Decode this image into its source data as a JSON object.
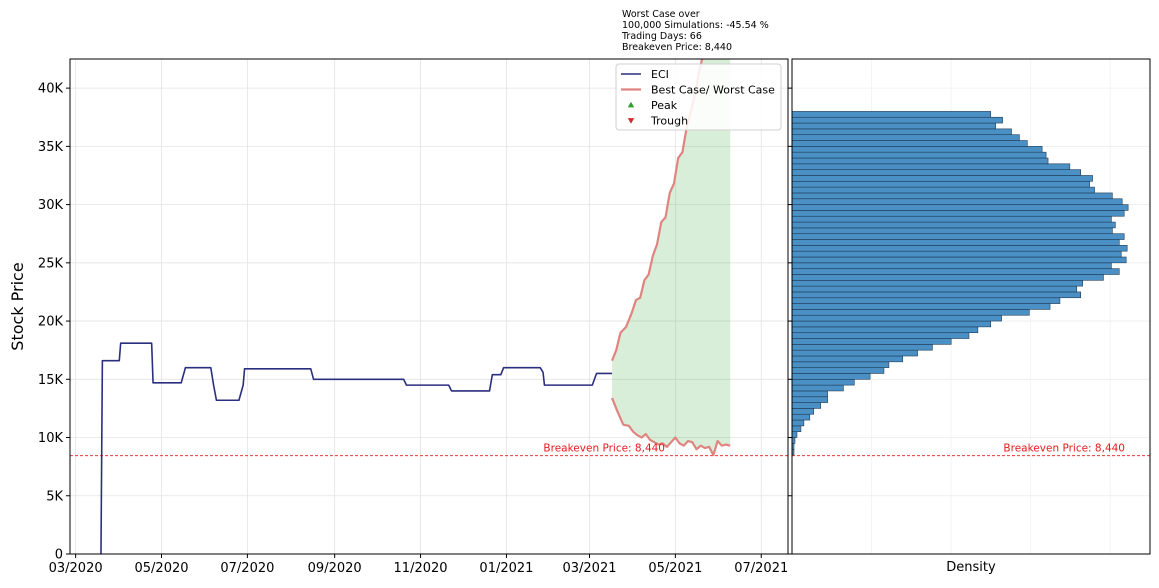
{
  "chart_data": [
    {
      "type": "line",
      "ylabel": "Stock Price",
      "xlabel": "",
      "ylim": [
        0,
        42500
      ],
      "xlim": [
        "2020-02-26",
        "2021-07-20"
      ],
      "y_ticks": [
        {
          "value": 0,
          "label": "0"
        },
        {
          "value": 5000,
          "label": "5K"
        },
        {
          "value": 10000,
          "label": "10K"
        },
        {
          "value": 15000,
          "label": "15K"
        },
        {
          "value": 20000,
          "label": "20K"
        },
        {
          "value": 25000,
          "label": "25K"
        },
        {
          "value": 30000,
          "label": "30K"
        },
        {
          "value": 35000,
          "label": "35K"
        },
        {
          "value": 40000,
          "label": "40K"
        }
      ],
      "x_ticks": [
        {
          "value": "2020-03-01",
          "label": "03/2020"
        },
        {
          "value": "2020-05-01",
          "label": "05/2020"
        },
        {
          "value": "2020-07-01",
          "label": "07/2020"
        },
        {
          "value": "2020-09-01",
          "label": "09/2020"
        },
        {
          "value": "2020-11-01",
          "label": "11/2020"
        },
        {
          "value": "2021-01-01",
          "label": "01/2021"
        },
        {
          "value": "2021-03-01",
          "label": "03/2021"
        },
        {
          "value": "2021-05-01",
          "label": "05/2021"
        },
        {
          "value": "2021-07-01",
          "label": "07/2021"
        }
      ],
      "grid": true,
      "legend_position": "top-right",
      "legend": [
        {
          "label": "ECI",
          "kind": "line",
          "color": "#2b2f7f"
        },
        {
          "label": "Best Case/ Worst Case",
          "kind": "line",
          "color": "#e08480"
        },
        {
          "label": "Peak",
          "kind": "triangle-up",
          "color": "#2ca02c"
        },
        {
          "label": "Trough",
          "kind": "triangle-down",
          "color": "#d62728"
        }
      ],
      "breakeven": {
        "value": 8440,
        "label": "Breakeven Price: 8,440",
        "color": "#e41a1c"
      },
      "annotation": [
        "Worst Case over",
        "100,000 Simulations: -45.54 %",
        "Trading Days: 66",
        "Breakeven Price: 8,440"
      ],
      "series": [
        {
          "name": "ECI",
          "color": "#2b2f7f",
          "points": [
            [
              "2020-03-19",
              0
            ],
            [
              "2020-03-20",
              16600
            ],
            [
              "2020-04-01",
              16600
            ],
            [
              "2020-04-02",
              18100
            ],
            [
              "2020-04-24",
              18100
            ],
            [
              "2020-04-25",
              14700
            ],
            [
              "2020-05-15",
              14700
            ],
            [
              "2020-05-18",
              16000
            ],
            [
              "2020-06-05",
              16000
            ],
            [
              "2020-06-07",
              14500
            ],
            [
              "2020-06-09",
              13200
            ],
            [
              "2020-06-25",
              13200
            ],
            [
              "2020-06-28",
              14500
            ],
            [
              "2020-06-29",
              15900
            ],
            [
              "2020-08-15",
              15900
            ],
            [
              "2020-08-17",
              15000
            ],
            [
              "2020-10-20",
              15000
            ],
            [
              "2020-10-22",
              14500
            ],
            [
              "2020-11-21",
              14500
            ],
            [
              "2020-11-23",
              14000
            ],
            [
              "2020-12-20",
              14000
            ],
            [
              "2020-12-22",
              15400
            ],
            [
              "2020-12-28",
              15400
            ],
            [
              "2020-12-30",
              16000
            ],
            [
              "2021-01-25",
              16000
            ],
            [
              "2021-01-27",
              15600
            ],
            [
              "2021-01-28",
              14500
            ],
            [
              "2021-03-03",
              14500
            ],
            [
              "2021-03-06",
              15500
            ],
            [
              "2021-03-17",
              15500
            ]
          ]
        },
        {
          "name": "Best Case/ Worst Case",
          "part": "best",
          "color": "#e08480",
          "points": [
            [
              "2021-03-17",
              16600
            ],
            [
              "2021-03-20",
              17500
            ],
            [
              "2021-03-23",
              19000
            ],
            [
              "2021-03-27",
              19500
            ],
            [
              "2021-03-31",
              20700
            ],
            [
              "2021-04-03",
              21800
            ],
            [
              "2021-04-06",
              22000
            ],
            [
              "2021-04-09",
              23500
            ],
            [
              "2021-04-12",
              24000
            ],
            [
              "2021-04-15",
              25600
            ],
            [
              "2021-04-18",
              26600
            ],
            [
              "2021-04-21",
              28500
            ],
            [
              "2021-04-24",
              28900
            ],
            [
              "2021-04-27",
              31000
            ],
            [
              "2021-04-30",
              31800
            ],
            [
              "2021-05-03",
              34000
            ],
            [
              "2021-05-06",
              34500
            ],
            [
              "2021-05-09",
              36600
            ],
            [
              "2021-05-12",
              38000
            ],
            [
              "2021-05-15",
              39500
            ],
            [
              "2021-05-18",
              41500
            ],
            [
              "2021-05-20",
              42500
            ]
          ]
        },
        {
          "name": "Best Case/ Worst Case",
          "part": "worst",
          "color": "#e08480",
          "points": [
            [
              "2021-03-17",
              13400
            ],
            [
              "2021-03-21",
              12200
            ],
            [
              "2021-03-25",
              11100
            ],
            [
              "2021-03-29",
              11000
            ],
            [
              "2021-04-01",
              10500
            ],
            [
              "2021-04-04",
              10200
            ],
            [
              "2021-04-07",
              10000
            ],
            [
              "2021-04-10",
              10300
            ],
            [
              "2021-04-13",
              9800
            ],
            [
              "2021-04-16",
              9600
            ],
            [
              "2021-04-19",
              9400
            ],
            [
              "2021-04-22",
              9500
            ],
            [
              "2021-04-25",
              9200
            ],
            [
              "2021-04-28",
              9600
            ],
            [
              "2021-05-01",
              10000
            ],
            [
              "2021-05-04",
              9500
            ],
            [
              "2021-05-07",
              9300
            ],
            [
              "2021-05-10",
              9700
            ],
            [
              "2021-05-13",
              9600
            ],
            [
              "2021-05-16",
              9000
            ],
            [
              "2021-05-19",
              9300
            ],
            [
              "2021-05-22",
              9100
            ],
            [
              "2021-05-25",
              9200
            ],
            [
              "2021-05-28",
              8500
            ],
            [
              "2021-05-31",
              9700
            ],
            [
              "2021-06-03",
              9300
            ],
            [
              "2021-06-06",
              9400
            ],
            [
              "2021-06-09",
              9300
            ]
          ]
        }
      ],
      "fill_between": {
        "color": "#2ca02c",
        "opacity": 0.18,
        "x_end": "2021-06-09"
      }
    },
    {
      "type": "bar",
      "orientation": "horizontal",
      "xlabel": "Density",
      "ylim": [
        0,
        42500
      ],
      "bin_edges_start": 8500,
      "bin_width": 500,
      "color": "#4a90c4",
      "breakeven": {
        "value": 8440,
        "label": "Breakeven Price: 8,440",
        "color": "#e41a1c"
      },
      "values": [
        2,
        2,
        3,
        5,
        9,
        12,
        18,
        22,
        29,
        36,
        36,
        52,
        63,
        79,
        93,
        98,
        112,
        127,
        142,
        161,
        179,
        188,
        201,
        212,
        240,
        261,
        271,
        292,
        288,
        294,
        315,
        331,
        323,
        338,
        333,
        339,
        331,
        336,
        324,
        327,
        323,
        336,
        340,
        334,
        324,
        306,
        301,
        304,
        292,
        281,
        259,
        257,
        253,
        238,
        230,
        222,
        206,
        213,
        201
      ]
    }
  ]
}
